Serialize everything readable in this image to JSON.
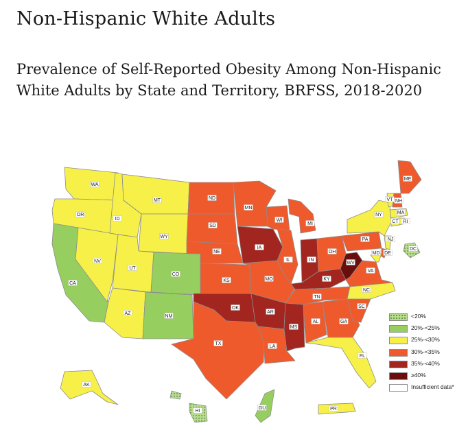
{
  "page": {
    "heading": "Non-Hispanic White Adults",
    "map_title": "Prevalence of Self-Reported Obesity Among Non-Hispanic White Adults by State and Territory, BRFSS, 2018-2020"
  },
  "colors": {
    "lt20": "#b6dd8c",
    "20to25": "#96cf5f",
    "25to30": "#f6f048",
    "30to35": "#ef5a2d",
    "35to40": "#a3251f",
    "ge40": "#6a0d0d",
    "insufficient": "#ffffff",
    "border": "#8c8c8c"
  },
  "legend": [
    {
      "key": "lt20",
      "label": "<20%",
      "dotted": true
    },
    {
      "key": "20to25",
      "label": "20%-<25%"
    },
    {
      "key": "25to30",
      "label": "25%-<30%"
    },
    {
      "key": "30to35",
      "label": "30%-<35%"
    },
    {
      "key": "35to40",
      "label": "35%-<40%"
    },
    {
      "key": "ge40",
      "label": "≥40%"
    },
    {
      "key": "insufficient",
      "label": "Insufficient data*"
    }
  ],
  "states": [
    {
      "code": "WA",
      "category": "25to30"
    },
    {
      "code": "OR",
      "category": "25to30"
    },
    {
      "code": "CA",
      "category": "20to25"
    },
    {
      "code": "NV",
      "category": "25to30"
    },
    {
      "code": "ID",
      "category": "25to30"
    },
    {
      "code": "MT",
      "category": "25to30"
    },
    {
      "code": "WY",
      "category": "25to30"
    },
    {
      "code": "UT",
      "category": "25to30"
    },
    {
      "code": "AZ",
      "category": "25to30"
    },
    {
      "code": "CO",
      "category": "20to25"
    },
    {
      "code": "NM",
      "category": "20to25"
    },
    {
      "code": "ND",
      "category": "30to35"
    },
    {
      "code": "SD",
      "category": "30to35"
    },
    {
      "code": "NE",
      "category": "30to35"
    },
    {
      "code": "KS",
      "category": "30to35"
    },
    {
      "code": "OK",
      "category": "35to40"
    },
    {
      "code": "TX",
      "category": "30to35"
    },
    {
      "code": "MN",
      "category": "30to35"
    },
    {
      "code": "IA",
      "category": "35to40"
    },
    {
      "code": "MO",
      "category": "30to35"
    },
    {
      "code": "AR",
      "category": "35to40"
    },
    {
      "code": "LA",
      "category": "30to35"
    },
    {
      "code": "WI",
      "category": "30to35"
    },
    {
      "code": "IL",
      "category": "30to35"
    },
    {
      "code": "MS",
      "category": "35to40"
    },
    {
      "code": "MI",
      "category": "30to35"
    },
    {
      "code": "IN",
      "category": "35to40"
    },
    {
      "code": "KY",
      "category": "35to40"
    },
    {
      "code": "TN",
      "category": "30to35"
    },
    {
      "code": "AL",
      "category": "30to35"
    },
    {
      "code": "OH",
      "category": "30to35"
    },
    {
      "code": "WV",
      "category": "ge40"
    },
    {
      "code": "GA",
      "category": "30to35"
    },
    {
      "code": "FL",
      "category": "25to30"
    },
    {
      "code": "SC",
      "category": "30to35"
    },
    {
      "code": "NC",
      "category": "25to30"
    },
    {
      "code": "VA",
      "category": "30to35"
    },
    {
      "code": "PA",
      "category": "30to35"
    },
    {
      "code": "NY",
      "category": "25to30"
    },
    {
      "code": "MD",
      "category": "25to30"
    },
    {
      "code": "DE",
      "category": "30to35"
    },
    {
      "code": "NJ",
      "category": "25to30"
    },
    {
      "code": "CT",
      "category": "25to30"
    },
    {
      "code": "RI",
      "category": "25to30"
    },
    {
      "code": "MA",
      "category": "25to30"
    },
    {
      "code": "VT",
      "category": "25to30"
    },
    {
      "code": "NH",
      "category": "30to35"
    },
    {
      "code": "ME",
      "category": "30to35"
    },
    {
      "code": "DC",
      "category": "lt20"
    },
    {
      "code": "AK",
      "category": "25to30"
    },
    {
      "code": "HI",
      "category": "lt20"
    },
    {
      "code": "GU",
      "category": "20to25"
    },
    {
      "code": "PR",
      "category": "25to30"
    }
  ]
}
